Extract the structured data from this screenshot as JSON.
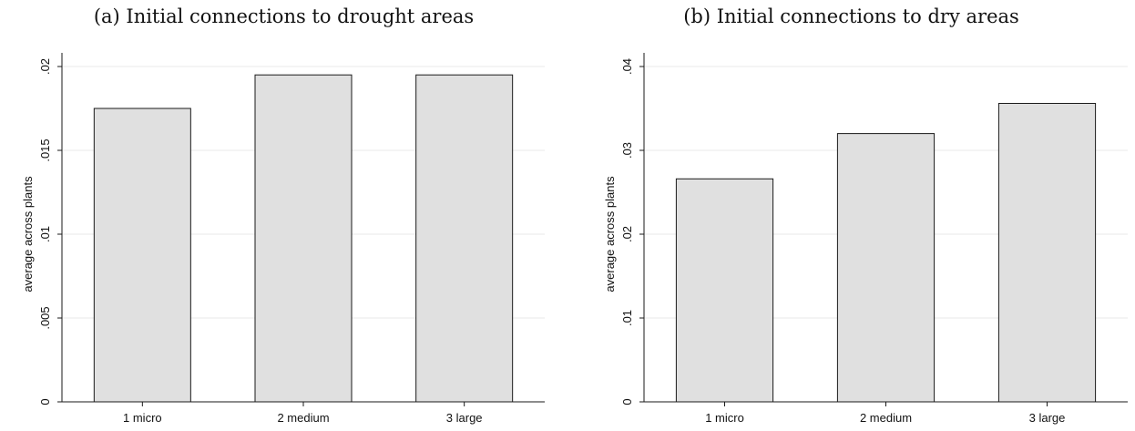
{
  "chart_data": [
    {
      "type": "bar",
      "title": "(a) Initial connections to drought areas",
      "ylabel": "average across plants",
      "xlabel": "",
      "categories": [
        "1 micro",
        "2 medium",
        "3 large"
      ],
      "values": [
        0.0175,
        0.0195,
        0.0195
      ],
      "ylim": [
        0,
        0.02
      ],
      "yticks": [
        0,
        0.005,
        0.01,
        0.015,
        0.02
      ],
      "ytick_labels": [
        "0",
        ".005",
        ".01",
        ".015",
        ".02"
      ],
      "grid": true,
      "bar_color": "#e0e0e0"
    },
    {
      "type": "bar",
      "title": "(b) Initial connections to dry areas",
      "ylabel": "average across plants",
      "xlabel": "",
      "categories": [
        "1 micro",
        "2 medium",
        "3 large"
      ],
      "values": [
        0.0266,
        0.032,
        0.0356
      ],
      "ylim": [
        0,
        0.04
      ],
      "yticks": [
        0,
        0.01,
        0.02,
        0.03,
        0.04
      ],
      "ytick_labels": [
        "0",
        ".01",
        ".02",
        ".03",
        ".04"
      ],
      "grid": true,
      "bar_color": "#e0e0e0"
    }
  ]
}
